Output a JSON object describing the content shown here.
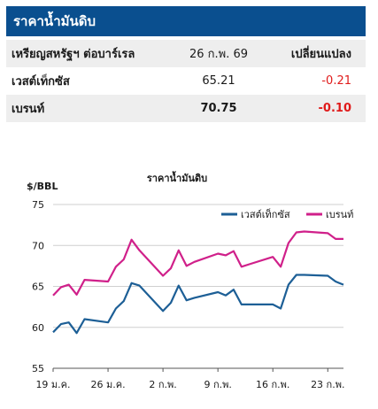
{
  "table": {
    "title": "ราคาน้ำมันดิบ",
    "header": {
      "label": "เหรียญสหรัฐฯ ต่อบาร์เรล",
      "date": "26 ก.พ. 69",
      "change": "เปลี่ยนแปลง"
    },
    "rows": [
      {
        "name": "เวสต์เท็กซัส",
        "price": "65.21",
        "change": "-0.21"
      },
      {
        "name": "เบรนท์",
        "price": "70.75",
        "change": "-0.10"
      }
    ],
    "colors": {
      "header_bg": "#0a4f8f",
      "negative": "#e01b1b"
    }
  },
  "chart_data": {
    "type": "line",
    "title": "ราคาน้ำมันดิบ",
    "ylabel": "$/BBL",
    "ylim": [
      55,
      75
    ],
    "yticks": [
      55,
      60,
      65,
      70,
      75
    ],
    "xticks": [
      "19 ม.ค.",
      "26 ม.ค.",
      "2 ก.พ.",
      "9 ก.พ.",
      "16 ก.พ.",
      "23 ก.พ."
    ],
    "legend_position": "top-right",
    "x": [
      0,
      1,
      2,
      3,
      4,
      7,
      8,
      9,
      10,
      11,
      14,
      15,
      16,
      17,
      18,
      21,
      22,
      23,
      24,
      25,
      28,
      29,
      30,
      31,
      32,
      35,
      36,
      37
    ],
    "series": [
      {
        "name": "เวสต์เท็กซัส",
        "color": "#1d5f96",
        "values": [
          59.4,
          60.4,
          60.6,
          59.3,
          61.0,
          60.6,
          62.3,
          63.2,
          65.4,
          65.1,
          62.0,
          63.0,
          65.1,
          63.3,
          63.6,
          64.3,
          63.9,
          64.6,
          62.8,
          62.8,
          62.8,
          62.3,
          65.2,
          66.4,
          66.4,
          66.3,
          65.6,
          65.2
        ]
      },
      {
        "name": "เบรนท์",
        "color": "#d0208a",
        "values": [
          63.9,
          64.9,
          65.2,
          64.0,
          65.8,
          65.6,
          67.4,
          68.3,
          70.7,
          69.4,
          66.3,
          67.2,
          69.4,
          67.5,
          68.0,
          69.0,
          68.8,
          69.3,
          67.4,
          67.7,
          68.6,
          67.4,
          70.3,
          71.6,
          71.7,
          71.5,
          70.8,
          70.8
        ]
      }
    ]
  }
}
